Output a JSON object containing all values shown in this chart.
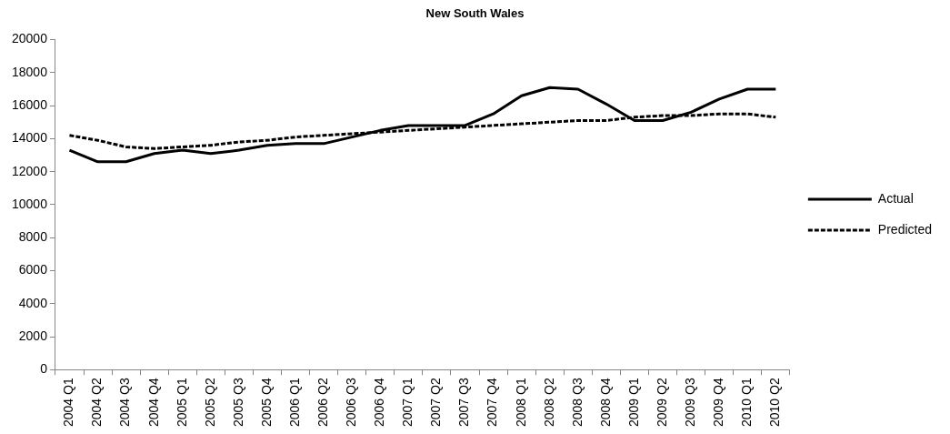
{
  "chart_data": {
    "type": "line",
    "title": "New South Wales",
    "categories": [
      "2004 Q1",
      "2004 Q2",
      "2004 Q3",
      "2004 Q4",
      "2005 Q1",
      "2005 Q2",
      "2005 Q3",
      "2005 Q4",
      "2006 Q1",
      "2006 Q2",
      "2006 Q3",
      "2006 Q4",
      "2007 Q1",
      "2007 Q2",
      "2007 Q3",
      "2007 Q4",
      "2008 Q1",
      "2008 Q2",
      "2008 Q3",
      "2008 Q4",
      "2009 Q1",
      "2009 Q2",
      "2009 Q3",
      "2009 Q4",
      "2010 Q1",
      "2010 Q2"
    ],
    "series": [
      {
        "name": "Actual",
        "color": "#000000",
        "line_style": "solid",
        "values": [
          13300,
          12600,
          12600,
          13100,
          13300,
          13100,
          13300,
          13600,
          13700,
          13700,
          14100,
          14500,
          14800,
          14800,
          14800,
          15500,
          16600,
          17100,
          17000,
          16100,
          15100,
          15100,
          15600,
          16400,
          17000,
          17000
        ]
      },
      {
        "name": "Predicted",
        "color": "#000000",
        "line_style": "dashed",
        "values": [
          14200,
          13900,
          13500,
          13400,
          13500,
          13600,
          13800,
          13900,
          14100,
          14200,
          14300,
          14400,
          14500,
          14600,
          14700,
          14800,
          14900,
          15000,
          15100,
          15100,
          15300,
          15400,
          15400,
          15500,
          15500,
          15300
        ]
      }
    ],
    "ylim": [
      0,
      20000
    ],
    "yticks": [
      0,
      2000,
      4000,
      6000,
      8000,
      10000,
      12000,
      14000,
      16000,
      18000,
      20000
    ],
    "grid": false,
    "legend": "right",
    "marker": "none"
  }
}
